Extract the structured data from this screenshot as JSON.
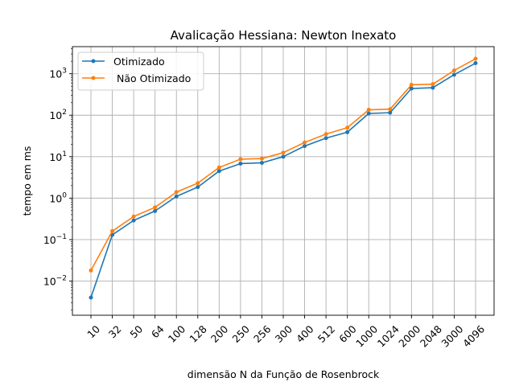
{
  "chart_data": {
    "type": "line",
    "title": "Avalicação Hessiana:  Newton Inexato",
    "xlabel": "dimensão N da Função de Rosenbrock",
    "ylabel": "tempo em ms",
    "yscale": "log",
    "ylim": [
      0.0015,
      4500
    ],
    "categories": [
      "10",
      "32",
      "50",
      "64",
      "100",
      "128",
      "200",
      "250",
      "256",
      "300",
      "400",
      "512",
      "600",
      "1000",
      "1024",
      "2000",
      "2048",
      "3000",
      "4096"
    ],
    "yticks": [
      {
        "value": 0.01,
        "mantissa": "10",
        "exp": "−2"
      },
      {
        "value": 0.1,
        "mantissa": "10",
        "exp": "−1"
      },
      {
        "value": 1,
        "mantissa": "10",
        "exp": "0"
      },
      {
        "value": 10,
        "mantissa": "10",
        "exp": "1"
      },
      {
        "value": 100,
        "mantissa": "10",
        "exp": "2"
      },
      {
        "value": 1000,
        "mantissa": "10",
        "exp": "3"
      }
    ],
    "grid": true,
    "legend_position": "top-left",
    "series": [
      {
        "name": "Otimizado",
        "color": "#1f77b4",
        "values": [
          0.004,
          0.13,
          0.29,
          0.49,
          1.1,
          1.85,
          4.5,
          6.8,
          7.1,
          10.0,
          18,
          28,
          39,
          110,
          115,
          440,
          460,
          950,
          1800
        ]
      },
      {
        "name": " Não Otimizado",
        "color": "#ff7f0e",
        "values": [
          0.018,
          0.16,
          0.36,
          0.6,
          1.4,
          2.3,
          5.5,
          8.7,
          9.0,
          12.5,
          22,
          35,
          50,
          135,
          140,
          540,
          560,
          1200,
          2300
        ]
      }
    ]
  }
}
